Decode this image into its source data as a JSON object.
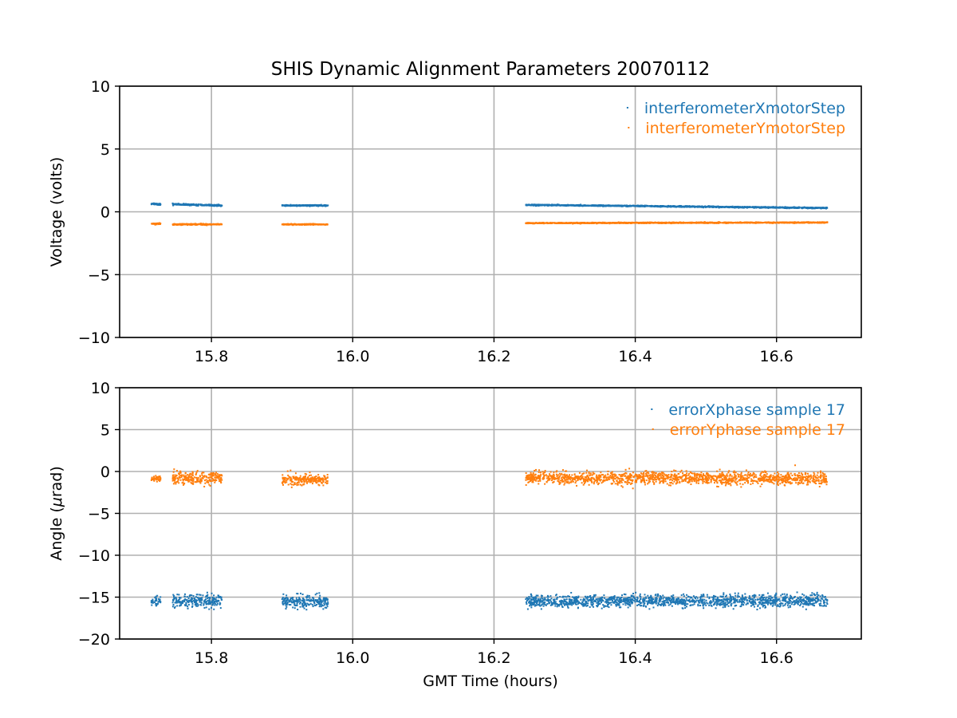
{
  "chart_data": [
    {
      "type": "scatter",
      "title": "SHIS Dynamic Alignment Parameters 20070112",
      "xlabel": "",
      "ylabel": "Voltage (volts)",
      "xlim": [
        15.67,
        16.72
      ],
      "ylim": [
        -10,
        10
      ],
      "xticks": [
        15.8,
        16.0,
        16.2,
        16.4,
        16.6
      ],
      "xtick_labels": [
        "15.8",
        "16.0",
        "16.2",
        "16.4",
        "16.6"
      ],
      "yticks": [
        10,
        5,
        0,
        -5,
        -10
      ],
      "ytick_labels": [
        "10",
        "5",
        "0",
        "−5",
        "−10"
      ],
      "grid": true,
      "legend_position": "top-right",
      "series": [
        {
          "name": "interferometerXmotorStep",
          "color": "#1f77b4",
          "segments": [
            {
              "x": [
                15.715,
                15.728
              ],
              "y": [
                0.65,
                0.6
              ],
              "noise": 0.08
            },
            {
              "x": [
                15.745,
                15.815
              ],
              "y": [
                0.6,
                0.5
              ],
              "noise": 0.06
            },
            {
              "x": [
                15.9,
                15.965
              ],
              "y": [
                0.5,
                0.5
              ],
              "noise": 0.05
            },
            {
              "x": [
                16.245,
                16.672
              ],
              "y": [
                0.55,
                0.3
              ],
              "noise": 0.05
            }
          ]
        },
        {
          "name": "interferometerYmotorStep",
          "color": "#ff7f0e",
          "segments": [
            {
              "x": [
                15.715,
                15.728
              ],
              "y": [
                -0.95,
                -0.95
              ],
              "noise": 0.06
            },
            {
              "x": [
                15.745,
                15.815
              ],
              "y": [
                -1.0,
                -1.0
              ],
              "noise": 0.05
            },
            {
              "x": [
                15.9,
                15.965
              ],
              "y": [
                -1.0,
                -1.0
              ],
              "noise": 0.04
            },
            {
              "x": [
                16.245,
                16.672
              ],
              "y": [
                -0.9,
                -0.85
              ],
              "noise": 0.04
            }
          ]
        }
      ]
    },
    {
      "type": "scatter",
      "title": "",
      "xlabel": "GMT Time (hours)",
      "ylabel_prefix": "Angle (",
      "ylabel_mu": "μ",
      "ylabel_suffix": "rad)",
      "xlim": [
        15.67,
        16.72
      ],
      "ylim": [
        -20,
        10
      ],
      "xticks": [
        15.8,
        16.0,
        16.2,
        16.4,
        16.6
      ],
      "xtick_labels": [
        "15.8",
        "16.0",
        "16.2",
        "16.4",
        "16.6"
      ],
      "yticks": [
        10,
        5,
        0,
        -5,
        -10,
        -15,
        -20
      ],
      "ytick_labels": [
        "10",
        "5",
        "0",
        "−5",
        "−10",
        "−15",
        "−20"
      ],
      "grid": true,
      "legend_position": "top-right",
      "series": [
        {
          "name": "errorXphase sample 17",
          "color": "#1f77b4",
          "segments": [
            {
              "x": [
                15.715,
                15.728
              ],
              "y": [
                -15.5,
                -15.5
              ],
              "noise": 0.5
            },
            {
              "x": [
                15.745,
                15.815
              ],
              "y": [
                -15.5,
                -15.5
              ],
              "noise": 0.9
            },
            {
              "x": [
                15.9,
                15.965
              ],
              "y": [
                -15.5,
                -15.5
              ],
              "noise": 0.8
            },
            {
              "x": [
                16.245,
                16.672
              ],
              "y": [
                -15.5,
                -15.4
              ],
              "noise": 0.8
            }
          ]
        },
        {
          "name": "errorYphase sample 17",
          "color": "#ff7f0e",
          "segments": [
            {
              "x": [
                15.715,
                15.728
              ],
              "y": [
                -0.9,
                -0.9
              ],
              "noise": 0.4
            },
            {
              "x": [
                15.745,
                15.815
              ],
              "y": [
                -0.8,
                -0.8
              ],
              "noise": 0.8
            },
            {
              "x": [
                15.9,
                15.965
              ],
              "y": [
                -1.0,
                -1.0
              ],
              "noise": 0.7
            },
            {
              "x": [
                16.245,
                16.672
              ],
              "y": [
                -0.8,
                -0.8
              ],
              "noise": 0.8
            }
          ]
        }
      ]
    }
  ]
}
